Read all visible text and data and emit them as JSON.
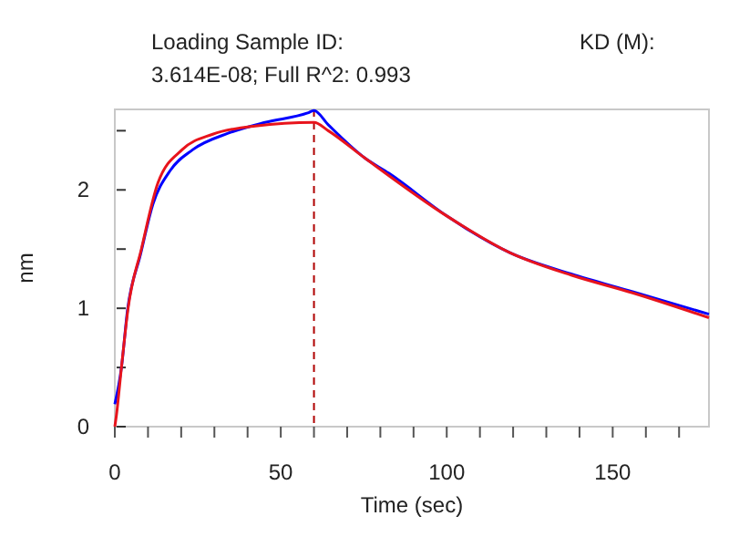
{
  "chart_data": {
    "type": "line",
    "title": "Loading Sample ID:",
    "subtitle": "3.614E-08; Full R^2: 0.993",
    "annotations": [
      "KD (M):"
    ],
    "xlabel": "Time (sec)",
    "ylabel": "nm",
    "xlim": [
      0,
      179
    ],
    "ylim": [
      0,
      2.68
    ],
    "xticks": [
      0,
      {
        "value": 10,
        "label": null
      },
      {
        "value": 20,
        "label": null
      },
      {
        "value": 30,
        "label": null
      },
      {
        "value": 40,
        "label": null
      },
      50,
      {
        "value": 60,
        "label": null
      },
      {
        "value": 70,
        "label": null
      },
      {
        "value": 80,
        "label": null
      },
      {
        "value": 90,
        "label": null
      },
      100,
      {
        "value": 110,
        "label": null
      },
      {
        "value": 120,
        "label": null
      },
      {
        "value": 130,
        "label": null
      },
      {
        "value": 140,
        "label": null
      },
      150,
      {
        "value": 160,
        "label": null
      },
      {
        "value": 170,
        "label": null
      }
    ],
    "yticks": [
      0,
      {
        "value": 0.5,
        "label": null
      },
      1,
      {
        "value": 1.5,
        "label": null
      },
      2,
      {
        "value": 2.5,
        "label": null
      }
    ],
    "series": [
      {
        "color": "#0000ff",
        "x": [
          0,
          2,
          3.8,
          7.7,
          11.5,
          16.6,
          23.5,
          34.3,
          45.3,
          58.1,
          60,
          64.3,
          75.3,
          82.6,
          100,
          119,
          137.5,
          156,
          179
        ],
        "values": [
          0.19,
          0.5,
          0.98,
          1.45,
          1.88,
          2.16,
          2.34,
          2.48,
          2.57,
          2.65,
          2.67,
          2.55,
          2.27,
          2.14,
          1.78,
          1.47,
          1.29,
          1.14,
          0.95
        ]
      },
      {
        "color": "#e8141c",
        "x": [
          0,
          0.5,
          2,
          4,
          8,
          13,
          20.3,
          29.5,
          42.3,
          60,
          64.3,
          75.3,
          100,
          119,
          137.5,
          156,
          179
        ],
        "values": [
          0,
          0.1,
          0.5,
          1.0,
          1.5,
          2.06,
          2.34,
          2.47,
          2.54,
          2.57,
          2.5,
          2.27,
          1.78,
          1.47,
          1.28,
          1.13,
          0.92
        ]
      }
    ],
    "ref_lines": [
      {
        "axis": "x",
        "value": 60,
        "color": "#b00000",
        "line_style": "dashed"
      }
    ],
    "grid": false
  }
}
